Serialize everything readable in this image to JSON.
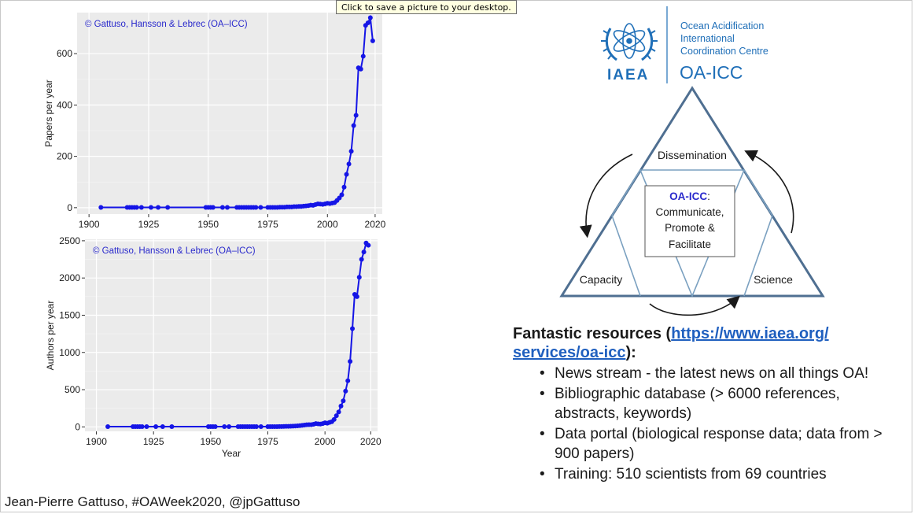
{
  "tooltip": "Click to save a picture to your desktop.",
  "footer": "Jean-Pierre Gattuso, #OAWeek2020, @jpGattuso",
  "colors": {
    "series": "#1515e6",
    "panel": "#ebebeb",
    "triangle": "#4f6f91",
    "link": "#1f5fbf"
  },
  "chart_data": [
    {
      "type": "line",
      "annotation": "© Gattuso, Hansson & Lebrec (OA–ICC)",
      "xlabel": "",
      "ylabel": "Papers per year",
      "xlim": [
        1895,
        2023
      ],
      "ylim": [
        -25,
        760
      ],
      "xticks": [
        1900,
        1925,
        1950,
        1975,
        2000,
        2020
      ],
      "yticks": [
        0,
        200,
        400,
        600
      ],
      "grid": true,
      "legend": "none",
      "x": [
        1905,
        1916,
        1917,
        1918,
        1919,
        1920,
        1922,
        1926,
        1929,
        1933,
        1949,
        1950,
        1951,
        1952,
        1956,
        1958,
        1962,
        1963,
        1964,
        1965,
        1966,
        1967,
        1968,
        1969,
        1970,
        1972,
        1975,
        1976,
        1977,
        1978,
        1979,
        1980,
        1981,
        1982,
        1983,
        1984,
        1985,
        1986,
        1987,
        1988,
        1989,
        1990,
        1991,
        1992,
        1993,
        1994,
        1995,
        1996,
        1997,
        1998,
        1999,
        2000,
        2001,
        2002,
        2003,
        2004,
        2005,
        2006,
        2007,
        2008,
        2009,
        2010,
        2011,
        2012,
        2013,
        2014,
        2015,
        2016,
        2017,
        2018,
        2019
      ],
      "y": [
        1,
        1,
        1,
        1,
        1,
        1,
        1,
        1,
        1,
        1,
        1,
        1,
        1,
        1,
        1,
        1,
        1,
        1,
        1,
        1,
        1,
        1,
        1,
        1,
        1,
        1,
        1,
        1,
        1,
        1,
        1,
        2,
        2,
        2,
        3,
        3,
        3,
        4,
        4,
        5,
        5,
        6,
        7,
        8,
        10,
        9,
        12,
        15,
        14,
        13,
        15,
        17,
        16,
        18,
        20,
        28,
        38,
        50,
        80,
        130,
        170,
        220,
        320,
        360,
        545,
        540,
        590,
        710,
        720,
        740,
        650
      ]
    },
    {
      "type": "line",
      "annotation": "© Gattuso, Hansson & Lebrec (OA–ICC)",
      "xlabel": "Year",
      "ylabel": "Authors per year",
      "xlim": [
        1895,
        2023
      ],
      "ylim": [
        -60,
        2520
      ],
      "xticks": [
        1900,
        1925,
        1950,
        1975,
        2000,
        2020
      ],
      "yticks": [
        0,
        500,
        1000,
        1500,
        2000,
        2500
      ],
      "grid": true,
      "legend": "none",
      "x": [
        1905,
        1916,
        1917,
        1918,
        1919,
        1920,
        1922,
        1926,
        1929,
        1933,
        1949,
        1950,
        1951,
        1952,
        1956,
        1958,
        1962,
        1963,
        1964,
        1965,
        1966,
        1967,
        1968,
        1969,
        1970,
        1972,
        1975,
        1976,
        1977,
        1978,
        1979,
        1980,
        1981,
        1982,
        1983,
        1984,
        1985,
        1986,
        1987,
        1988,
        1989,
        1990,
        1991,
        1992,
        1993,
        1994,
        1995,
        1996,
        1997,
        1998,
        1999,
        2000,
        2001,
        2002,
        2003,
        2004,
        2005,
        2006,
        2007,
        2008,
        2009,
        2010,
        2011,
        2012,
        2013,
        2014,
        2015,
        2016,
        2017,
        2018,
        2019
      ],
      "y": [
        3,
        3,
        3,
        3,
        3,
        3,
        3,
        3,
        3,
        3,
        3,
        3,
        3,
        3,
        3,
        3,
        3,
        3,
        3,
        3,
        3,
        3,
        3,
        3,
        3,
        3,
        3,
        3,
        4,
        4,
        4,
        5,
        5,
        6,
        7,
        8,
        9,
        10,
        12,
        14,
        16,
        20,
        24,
        28,
        30,
        30,
        35,
        45,
        40,
        38,
        45,
        55,
        50,
        60,
        70,
        100,
        150,
        200,
        280,
        350,
        480,
        620,
        880,
        1320,
        1780,
        1750,
        2010,
        2250,
        2350,
        2470,
        2440
      ]
    }
  ],
  "logo": {
    "org": "IAEA",
    "line1": "Ocean Acidification",
    "line2": "International",
    "line3": "Coordination Centre",
    "acronym": "OA-ICC"
  },
  "triangle": {
    "top": "Dissemination",
    "left": "Capacity",
    "right": "Science",
    "center_title": "OA-ICC",
    "center_colon": ":",
    "center_line1": "Communicate,",
    "center_line2": "Promote &",
    "center_line3": "Facilitate"
  },
  "resources": {
    "title_prefix": "Fantastic resources (",
    "link": "https://www.iaea.org/services/oa-icc",
    "link_line1": "https://www.iaea.org/",
    "link_line2": "services/oa-icc",
    "title_suffix": "):",
    "items": [
      "News stream - the latest news on all things OA!",
      "Bibliographic database (> 6000 references, abstracts, keywords)",
      "Data portal (biological response data; data from > 900 papers)",
      "Training: 510 scientists from 69 countries"
    ]
  }
}
